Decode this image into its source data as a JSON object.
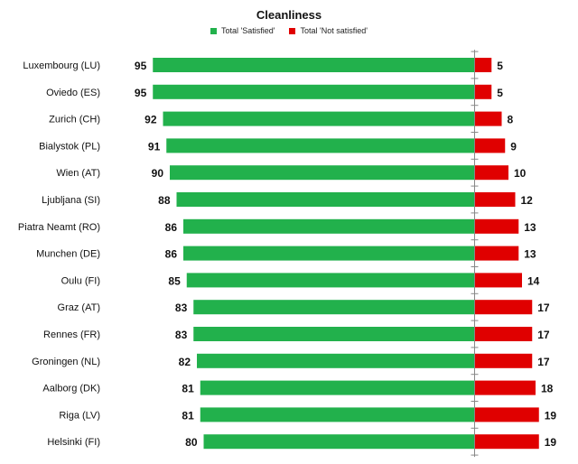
{
  "chart_data": {
    "type": "bar",
    "title": "Cleanliness",
    "categories": [
      "Luxembourg (LU)",
      "Oviedo (ES)",
      "Zurich (CH)",
      "Bialystok (PL)",
      "Wien (AT)",
      "Ljubljana (SI)",
      "Piatra Neamt (RO)",
      "Munchen (DE)",
      "Oulu (FI)",
      "Graz (AT)",
      "Rennes (FR)",
      "Groningen (NL)",
      "Aalborg (DK)",
      "Riga (LV)",
      "Helsinki (FI)"
    ],
    "series": [
      {
        "name": "Total 'Satisfied'",
        "color": "#22b14c",
        "values": [
          95,
          95,
          92,
          91,
          90,
          88,
          86,
          86,
          85,
          83,
          83,
          82,
          81,
          81,
          80
        ]
      },
      {
        "name": "Total 'Not satisfied'",
        "color": "#e00000",
        "values": [
          5,
          5,
          8,
          9,
          10,
          12,
          13,
          13,
          14,
          17,
          17,
          17,
          18,
          19,
          19
        ]
      }
    ],
    "orientation": "horizontal-diverging",
    "legend_position": "top-center",
    "grid": false
  }
}
